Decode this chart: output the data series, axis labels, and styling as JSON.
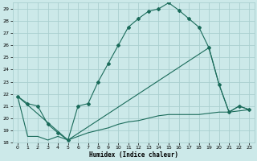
{
  "xlabel": "Humidex (Indice chaleur)",
  "bg_color": "#cce9e9",
  "grid_color": "#aacfcf",
  "line_color": "#1a6b5a",
  "ylim": [
    18,
    29.5
  ],
  "xlim": [
    -0.5,
    23.5
  ],
  "yticks": [
    18,
    19,
    20,
    21,
    22,
    23,
    24,
    25,
    26,
    27,
    28,
    29
  ],
  "xticks": [
    0,
    1,
    2,
    3,
    4,
    5,
    6,
    7,
    8,
    9,
    10,
    11,
    12,
    13,
    14,
    15,
    16,
    17,
    18,
    19,
    20,
    21,
    22,
    23
  ],
  "curve1_x": [
    0,
    1,
    2,
    3,
    4,
    5,
    6,
    7,
    8,
    9,
    10,
    11,
    12,
    13,
    14,
    15,
    16,
    17,
    18,
    19,
    20,
    21,
    22,
    23
  ],
  "curve1_y": [
    21.8,
    21.2,
    21.0,
    19.5,
    18.8,
    18.2,
    21.0,
    21.2,
    23.0,
    24.5,
    26.0,
    27.5,
    28.2,
    28.8,
    29.0,
    29.5,
    28.9,
    28.2,
    27.5,
    25.8,
    22.8,
    20.5,
    21.0,
    20.7
  ],
  "curve2_x": [
    0,
    1,
    2,
    3,
    4,
    5,
    6,
    7,
    8,
    9,
    10,
    11,
    12,
    13,
    14,
    15,
    16,
    17,
    18,
    19,
    20,
    21,
    22,
    23
  ],
  "curve2_y": [
    21.8,
    18.5,
    18.5,
    18.2,
    18.5,
    18.2,
    18.5,
    18.8,
    19.0,
    19.2,
    19.5,
    19.7,
    19.8,
    20.0,
    20.2,
    20.3,
    20.3,
    20.3,
    20.3,
    20.4,
    20.5,
    20.5,
    20.6,
    20.7
  ],
  "curve3_x": [
    0,
    5,
    19,
    20,
    21,
    22,
    23
  ],
  "curve3_y": [
    21.8,
    18.2,
    25.8,
    22.8,
    20.5,
    21.0,
    20.7
  ]
}
